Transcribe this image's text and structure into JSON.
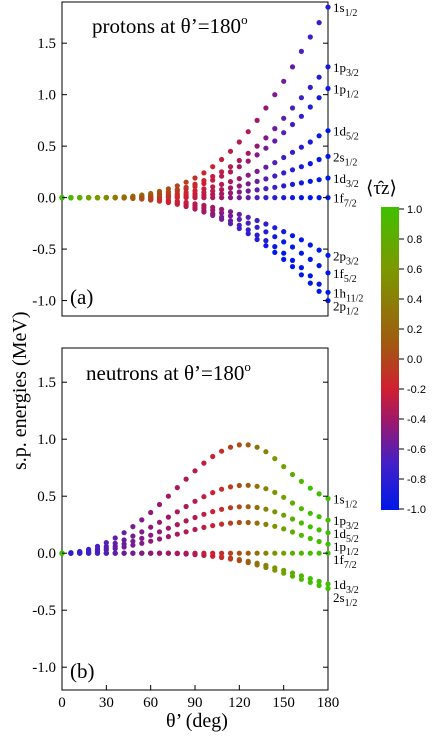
{
  "colorbar": {
    "title": "⟨τ̂z⟩",
    "ticks": [
      "1.0",
      "0.8",
      "0.6",
      "0.4",
      "0.2",
      "0.0",
      "-0.2",
      "-0.4",
      "-0.6",
      "-0.8",
      "-1.0"
    ],
    "colors": [
      "#40c000",
      "#7a9a00",
      "#a05a10",
      "#d02030",
      "#a01868",
      "#4020c8",
      "#0018e8"
    ]
  },
  "chart_data": [
    {
      "type": "scatter",
      "panel_label": "(a)",
      "title": "protons at θ’=180",
      "title_sup": "o",
      "ylabel": "s.p. energies (MeV)",
      "xlabel": "",
      "xlim": [
        0,
        180
      ],
      "ylim": [
        -1.15,
        1.9
      ],
      "yticks": [
        -1.0,
        -0.5,
        0.0,
        0.5,
        1.0,
        1.5
      ],
      "ytick_labels": [
        "-1.0",
        "-0.5",
        "0.0",
        "0.5",
        "1.0",
        "1.5"
      ],
      "x": [
        0,
        6,
        12,
        18,
        24,
        30,
        36,
        42,
        48,
        54,
        60,
        66,
        72,
        78,
        84,
        90,
        96,
        102,
        108,
        114,
        120,
        126,
        132,
        138,
        144,
        150,
        156,
        162,
        168,
        174,
        180
      ],
      "series": [
        {
          "label_main": "1s",
          "label_sub": "1/2",
          "end": 1.85,
          "values": [
            0,
            0,
            0,
            0,
            0,
            0.001,
            0.003,
            0.008,
            0.015,
            0.025,
            0.04,
            0.06,
            0.085,
            0.115,
            0.15,
            0.19,
            0.24,
            0.3,
            0.37,
            0.45,
            0.54,
            0.64,
            0.75,
            0.87,
            1.0,
            1.13,
            1.27,
            1.42,
            1.56,
            1.7,
            1.85
          ]
        },
        {
          "label_main": "1p",
          "label_sub": "3/2",
          "end": 1.27,
          "values": [
            0,
            0,
            0,
            0,
            0,
            0.001,
            0.002,
            0.005,
            0.01,
            0.017,
            0.027,
            0.04,
            0.057,
            0.078,
            0.1,
            0.13,
            0.165,
            0.205,
            0.25,
            0.3,
            0.36,
            0.43,
            0.5,
            0.58,
            0.67,
            0.77,
            0.87,
            0.97,
            1.07,
            1.17,
            1.27
          ]
        },
        {
          "label_main": "1p",
          "label_sub": "1/2",
          "end": 1.06,
          "values": [
            0,
            0,
            0,
            0,
            0,
            0.001,
            0.002,
            0.004,
            0.008,
            0.014,
            0.022,
            0.033,
            0.047,
            0.064,
            0.084,
            0.108,
            0.137,
            0.17,
            0.208,
            0.25,
            0.3,
            0.355,
            0.415,
            0.48,
            0.55,
            0.63,
            0.71,
            0.79,
            0.88,
            0.97,
            1.06
          ]
        },
        {
          "label_main": "1d",
          "label_sub": "5/2",
          "end": 0.65,
          "values": [
            0,
            0,
            0,
            0,
            0,
            0,
            0.001,
            0.003,
            0.005,
            0.009,
            0.014,
            0.021,
            0.029,
            0.039,
            0.052,
            0.067,
            0.085,
            0.105,
            0.128,
            0.155,
            0.185,
            0.218,
            0.255,
            0.295,
            0.34,
            0.39,
            0.44,
            0.49,
            0.54,
            0.6,
            0.65
          ]
        },
        {
          "label_main": "2s",
          "label_sub": "1/2",
          "end": 0.4,
          "values": [
            0,
            0,
            0,
            0,
            0,
            0,
            0.001,
            0.002,
            0.003,
            0.005,
            0.008,
            0.012,
            0.017,
            0.023,
            0.031,
            0.04,
            0.051,
            0.064,
            0.078,
            0.094,
            0.113,
            0.134,
            0.157,
            0.182,
            0.21,
            0.24,
            0.27,
            0.3,
            0.33,
            0.37,
            0.4
          ]
        },
        {
          "label_main": "1d",
          "label_sub": "3/2",
          "end": 0.19,
          "values": [
            0,
            0,
            0,
            0,
            0,
            0,
            0,
            0.001,
            0.002,
            0.003,
            0.004,
            0.006,
            0.008,
            0.011,
            0.015,
            0.019,
            0.024,
            0.03,
            0.037,
            0.045,
            0.054,
            0.064,
            0.075,
            0.087,
            0.1,
            0.114,
            0.128,
            0.143,
            0.158,
            0.174,
            0.19
          ]
        },
        {
          "label_main": "1f",
          "label_sub": "7/2",
          "end": 0.0,
          "values": [
            0,
            0,
            0,
            0,
            0,
            0,
            0,
            0,
            0,
            0,
            0,
            0,
            0,
            0,
            0,
            0,
            0,
            0,
            0,
            0,
            0,
            0,
            0,
            0,
            0,
            0,
            0,
            0,
            0,
            0,
            0
          ]
        },
        {
          "label_main": "2p",
          "label_sub": "3/2",
          "end": -0.56,
          "values": [
            0,
            0,
            0,
            0,
            0,
            0,
            -0.001,
            -0.002,
            -0.004,
            -0.007,
            -0.012,
            -0.018,
            -0.026,
            -0.035,
            -0.047,
            -0.06,
            -0.076,
            -0.094,
            -0.114,
            -0.137,
            -0.163,
            -0.191,
            -0.222,
            -0.256,
            -0.292,
            -0.33,
            -0.37,
            -0.41,
            -0.46,
            -0.51,
            -0.56
          ]
        },
        {
          "label_main": "1f",
          "label_sub": "5/2",
          "end": -0.73,
          "values": [
            0,
            0,
            0,
            0,
            0,
            0,
            -0.001,
            -0.003,
            -0.006,
            -0.01,
            -0.016,
            -0.024,
            -0.034,
            -0.046,
            -0.061,
            -0.078,
            -0.099,
            -0.122,
            -0.149,
            -0.178,
            -0.212,
            -0.248,
            -0.288,
            -0.332,
            -0.38,
            -0.43,
            -0.48,
            -0.54,
            -0.6,
            -0.66,
            -0.73
          ]
        },
        {
          "label_main": "1h",
          "label_sub": "11/2",
          "end": -0.92,
          "values": [
            0,
            0,
            0,
            0,
            0,
            0,
            -0.001,
            -0.003,
            -0.007,
            -0.012,
            -0.02,
            -0.03,
            -0.043,
            -0.058,
            -0.077,
            -0.099,
            -0.125,
            -0.155,
            -0.189,
            -0.226,
            -0.268,
            -0.314,
            -0.364,
            -0.418,
            -0.476,
            -0.54,
            -0.61,
            -0.68,
            -0.76,
            -0.84,
            -0.92
          ]
        },
        {
          "label_main": "2p",
          "label_sub": "1/2",
          "end": -1.0,
          "values": [
            0,
            0,
            0,
            0,
            0,
            0,
            -0.001,
            -0.004,
            -0.008,
            -0.014,
            -0.023,
            -0.034,
            -0.048,
            -0.065,
            -0.086,
            -0.111,
            -0.14,
            -0.173,
            -0.211,
            -0.253,
            -0.3,
            -0.351,
            -0.407,
            -0.467,
            -0.532,
            -0.6,
            -0.67,
            -0.75,
            -0.83,
            -0.91,
            -1.0
          ]
        }
      ]
    },
    {
      "type": "scatter",
      "panel_label": "(b)",
      "title": "neutrons at θ’=180",
      "title_sup": "o",
      "ylabel": "",
      "xlabel": "θ’ (deg)",
      "xlim": [
        0,
        180
      ],
      "ylim": [
        -1.2,
        1.8
      ],
      "xticks": [
        0,
        30,
        60,
        90,
        120,
        150,
        180
      ],
      "xtick_labels": [
        "0",
        "30",
        "60",
        "90",
        "120",
        "150",
        "180"
      ],
      "yticks": [
        -1.0,
        -0.5,
        0.0,
        0.5,
        1.0,
        1.5
      ],
      "ytick_labels": [
        "-1.0",
        "-0.5",
        "0.0",
        "0.5",
        "1.0",
        "1.5"
      ],
      "x": [
        0,
        6,
        12,
        18,
        24,
        30,
        36,
        42,
        48,
        54,
        60,
        66,
        72,
        78,
        84,
        90,
        96,
        102,
        108,
        114,
        120,
        126,
        132,
        138,
        144,
        150,
        156,
        162,
        168,
        174,
        180
      ],
      "series": [
        {
          "label_main": "1s",
          "label_sub": "1/2",
          "end": 0.48,
          "values": [
            0,
            0.004,
            0.015,
            0.034,
            0.06,
            0.093,
            0.133,
            0.18,
            0.233,
            0.292,
            0.357,
            0.427,
            0.5,
            0.575,
            0.65,
            0.723,
            0.79,
            0.848,
            0.895,
            0.93,
            0.95,
            0.95,
            0.93,
            0.89,
            0.83,
            0.76,
            0.69,
            0.63,
            0.57,
            0.52,
            0.48
          ]
        },
        {
          "label_main": "1p",
          "label_sub": "3/2",
          "end": 0.29,
          "values": [
            0,
            0.003,
            0.01,
            0.022,
            0.039,
            0.06,
            0.086,
            0.116,
            0.15,
            0.187,
            0.228,
            0.271,
            0.317,
            0.363,
            0.41,
            0.455,
            0.496,
            0.532,
            0.561,
            0.582,
            0.594,
            0.596,
            0.587,
            0.566,
            0.533,
            0.49,
            0.44,
            0.39,
            0.35,
            0.32,
            0.29
          ]
        },
        {
          "label_main": "1d",
          "label_sub": "5/2",
          "end": 0.18,
          "values": [
            0,
            0.002,
            0.007,
            0.015,
            0.027,
            0.042,
            0.06,
            0.081,
            0.104,
            0.13,
            0.158,
            0.188,
            0.219,
            0.251,
            0.283,
            0.313,
            0.341,
            0.365,
            0.385,
            0.399,
            0.407,
            0.408,
            0.401,
            0.386,
            0.363,
            0.333,
            0.3,
            0.265,
            0.232,
            0.204,
            0.18
          ]
        },
        {
          "label_main": "1p",
          "label_sub": "1/2",
          "end": 0.08,
          "values": [
            0,
            0.001,
            0.005,
            0.01,
            0.018,
            0.028,
            0.04,
            0.054,
            0.07,
            0.087,
            0.105,
            0.125,
            0.146,
            0.167,
            0.188,
            0.208,
            0.226,
            0.242,
            0.255,
            0.264,
            0.269,
            0.269,
            0.264,
            0.253,
            0.236,
            0.213,
            0.186,
            0.157,
            0.129,
            0.103,
            0.08
          ]
        },
        {
          "label_main": "1f",
          "label_sub": "7/2",
          "end": 0.0,
          "values": [
            0,
            0,
            0,
            0,
            0,
            0,
            0,
            0,
            0,
            0,
            0,
            0,
            0,
            0,
            0,
            0,
            0,
            0,
            0,
            0,
            0,
            0,
            0,
            0,
            0,
            0,
            0,
            0,
            0,
            0,
            0
          ]
        },
        {
          "label_main": "1d",
          "label_sub": "3/2",
          "end": -0.27,
          "values": [
            0,
            0,
            0,
            0,
            0,
            0,
            0,
            0,
            0,
            0,
            0,
            0,
            0,
            -0.003,
            -0.006,
            -0.01,
            -0.016,
            -0.023,
            -0.032,
            -0.043,
            -0.056,
            -0.071,
            -0.088,
            -0.107,
            -0.128,
            -0.151,
            -0.175,
            -0.199,
            -0.223,
            -0.247,
            -0.27
          ]
        },
        {
          "label_main": "2s",
          "label_sub": "1/2",
          "end": -0.31,
          "values": [
            0,
            0,
            0,
            0,
            0,
            0,
            0,
            0,
            0,
            0,
            0,
            0,
            0,
            -0.003,
            -0.007,
            -0.012,
            -0.019,
            -0.027,
            -0.038,
            -0.051,
            -0.066,
            -0.083,
            -0.103,
            -0.125,
            -0.149,
            -0.175,
            -0.202,
            -0.229,
            -0.256,
            -0.283,
            -0.31
          ]
        }
      ]
    }
  ]
}
